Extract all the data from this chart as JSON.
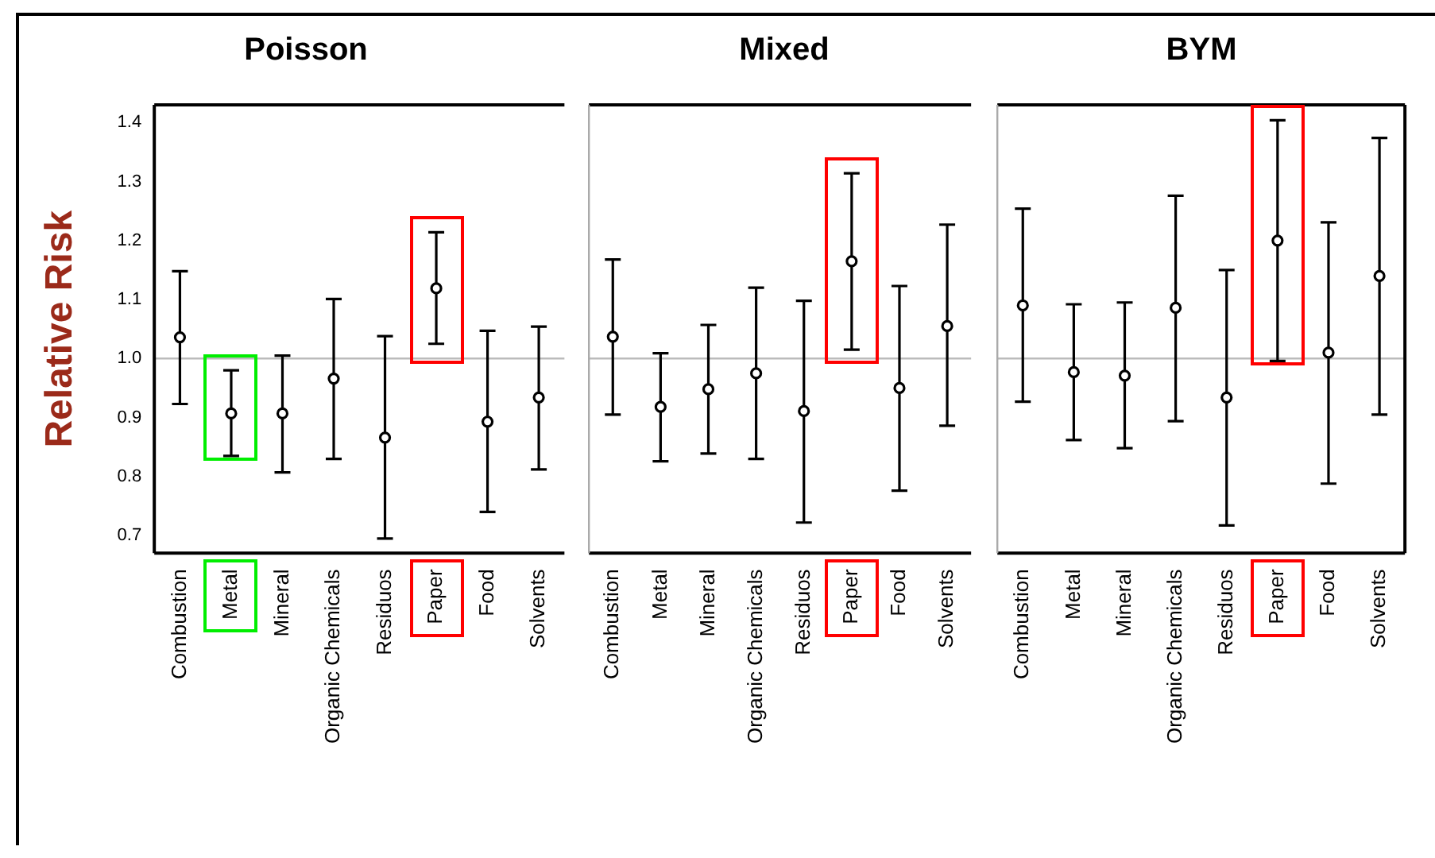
{
  "chart_data": [
    {
      "type": "scatter",
      "title": "Poisson",
      "ylabel": "Relative Risk",
      "categories": [
        "Combustion",
        "Metal",
        "Mineral",
        "Organic Chemicals",
        "Residuos",
        "Paper",
        "Food",
        "Solvents"
      ],
      "color": "#000000",
      "marker": "circle",
      "values": [
        1.036,
        0.907,
        0.907,
        0.966,
        0.866,
        1.119,
        0.893,
        0.934
      ],
      "errors": [
        [
          0.923,
          1.148
        ],
        [
          0.835,
          0.98
        ],
        [
          0.807,
          1.005
        ],
        [
          0.83,
          1.101
        ],
        [
          0.695,
          1.038
        ],
        [
          1.025,
          1.214
        ],
        [
          0.74,
          1.047
        ],
        [
          0.812,
          1.054
        ]
      ],
      "ylim": [
        0.67,
        1.43
      ],
      "yticks": [
        0.7,
        0.8,
        0.9,
        {
          "value": 1,
          "label": "1.0"
        },
        1.1,
        1.2,
        1.3,
        1.4
      ],
      "ref_lines": [
        {
          "axis": "y",
          "value": 1.0,
          "color": "#bbbbbb"
        }
      ]
    },
    {
      "type": "scatter",
      "title": "Mixed",
      "categories": [
        "Combustion",
        "Metal",
        "Mineral",
        "Organic Chemicals",
        "Residuos",
        "Paper",
        "Food",
        "Solvents"
      ],
      "color": "#000000",
      "marker": "circle",
      "tick_labels": "x",
      "values": [
        1.037,
        0.918,
        0.948,
        0.975,
        0.911,
        1.165,
        0.95,
        1.055
      ],
      "errors": [
        [
          0.905,
          1.168
        ],
        [
          0.826,
          1.009
        ],
        [
          0.839,
          1.057
        ],
        [
          0.83,
          1.12
        ],
        [
          0.722,
          1.098
        ],
        [
          1.015,
          1.314
        ],
        [
          0.776,
          1.123
        ],
        [
          0.886,
          1.227
        ]
      ],
      "ylim": [
        0.67,
        1.43
      ],
      "yticks": [
        0.7,
        0.8,
        0.9,
        1.0,
        1.1,
        1.2,
        1.3,
        1.4
      ],
      "ref_lines": [
        {
          "axis": "y",
          "value": 1.0,
          "color": "#bbbbbb"
        }
      ]
    },
    {
      "type": "scatter",
      "title": "BYM",
      "categories": [
        "Combustion",
        "Metal",
        "Mineral",
        "Organic Chemicals",
        "Residuos",
        "Paper",
        "Food",
        "Solvents"
      ],
      "color": "#000000",
      "marker": "circle",
      "tick_labels": "x",
      "values": [
        1.09,
        0.977,
        0.971,
        1.086,
        0.934,
        1.2,
        1.01,
        1.14
      ],
      "errors": [
        [
          0.927,
          1.254
        ],
        [
          0.862,
          1.092
        ],
        [
          0.848,
          1.095
        ],
        [
          0.894,
          1.276
        ],
        [
          0.717,
          1.15
        ],
        [
          0.996,
          1.404
        ],
        [
          0.788,
          1.231
        ],
        [
          0.905,
          1.374
        ]
      ],
      "ylim": [
        0.67,
        1.43
      ],
      "yticks": [
        0.7,
        0.8,
        0.9,
        1.0,
        1.1,
        1.2,
        1.3,
        1.4
      ],
      "ref_lines": [
        {
          "axis": "y",
          "value": 1.0,
          "color": "#bbbbbb"
        }
      ]
    }
  ]
}
